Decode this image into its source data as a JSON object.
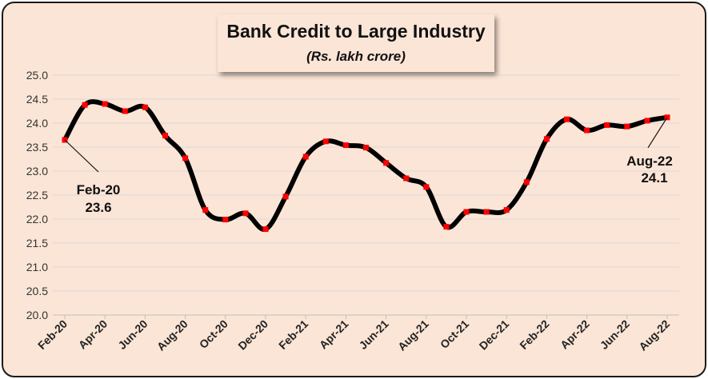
{
  "chart_data": {
    "type": "line",
    "title": "Bank Credit to Large Industry",
    "subtitle": "(Rs. lakh crore)",
    "xlabel": "",
    "ylabel": "",
    "ylim": [
      20.0,
      25.0
    ],
    "y_ticks": [
      "20.0",
      "20.5",
      "21.0",
      "21.5",
      "22.0",
      "22.5",
      "23.0",
      "23.5",
      "24.0",
      "24.5",
      "25.0"
    ],
    "x": [
      "Feb-20",
      "Mar-20",
      "Apr-20",
      "May-20",
      "Jun-20",
      "Jul-20",
      "Aug-20",
      "Sep-20",
      "Oct-20",
      "Nov-20",
      "Dec-20",
      "Jan-21",
      "Feb-21",
      "Mar-21",
      "Apr-21",
      "May-21",
      "Jun-21",
      "Jul-21",
      "Aug-21",
      "Sep-21",
      "Oct-21",
      "Nov-21",
      "Dec-21",
      "Jan-22",
      "Feb-22",
      "Mar-22",
      "Apr-22",
      "May-22",
      "Jun-22",
      "Jul-22",
      "Aug-22"
    ],
    "x_tick_labels": [
      "Feb-20",
      "Apr-20",
      "Jun-20",
      "Aug-20",
      "Oct-20",
      "Dec-20",
      "Feb-21",
      "Apr-21",
      "Jun-21",
      "Aug-21",
      "Oct-21",
      "Dec-21",
      "Feb-22",
      "Apr-22",
      "Jun-22",
      "Aug-22"
    ],
    "series": [
      {
        "name": "Bank Credit to Large Industry",
        "values": [
          23.65,
          24.38,
          24.4,
          24.25,
          24.33,
          23.74,
          23.27,
          22.19,
          21.99,
          22.12,
          21.79,
          22.47,
          23.3,
          23.62,
          23.54,
          23.49,
          23.17,
          22.85,
          22.67,
          21.84,
          22.15,
          22.15,
          22.19,
          22.77,
          23.67,
          24.08,
          23.85,
          23.96,
          23.93,
          24.05,
          24.12
        ]
      }
    ],
    "annotations": [
      {
        "x": "Feb-20",
        "label": "Feb-20",
        "value": "23.6"
      },
      {
        "x": "Aug-22",
        "label": "Aug-22",
        "value": "24.1"
      }
    ],
    "grid": true,
    "colors": {
      "line": "#000000",
      "marker": "#ff0000",
      "grid": "#d9d9d9",
      "background": "#fbe5d6"
    }
  }
}
